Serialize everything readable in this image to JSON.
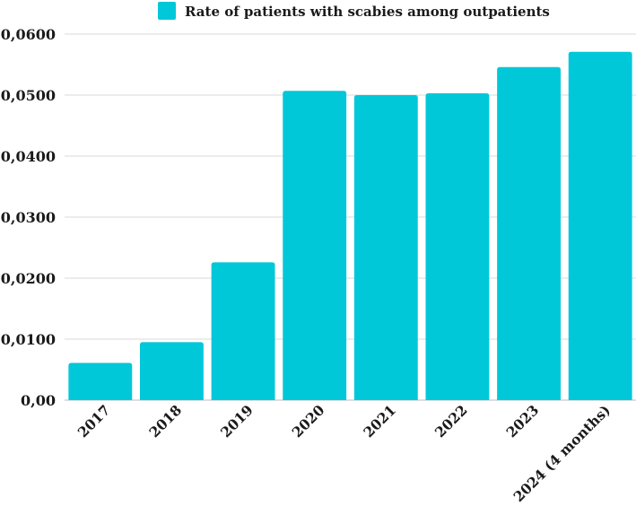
{
  "chart_data": {
    "type": "bar",
    "title": "",
    "xlabel": "",
    "ylabel": "",
    "categories": [
      "2017",
      "2018",
      "2019",
      "2020",
      "2021",
      "2022",
      "2023",
      "2024 (4 months)"
    ],
    "series": [
      {
        "name": "Rate of patients with scabies among outpatients",
        "color": "#00c8d9",
        "values": [
          0.0061,
          0.0095,
          0.0226,
          0.0507,
          0.05,
          0.0503,
          0.0546,
          0.0571
        ]
      }
    ],
    "ylim": [
      0,
      0.06
    ],
    "yticks": [
      0,
      0.01,
      0.02,
      0.03,
      0.04,
      0.05,
      0.06
    ],
    "ytick_labels": [
      "0,00",
      "0,0100",
      "0,0200",
      "0,0300",
      "0,0400",
      "0,0500",
      "0,0600"
    ],
    "grid": true,
    "legend_position": "top-center",
    "x_tick_rotation": -45
  }
}
